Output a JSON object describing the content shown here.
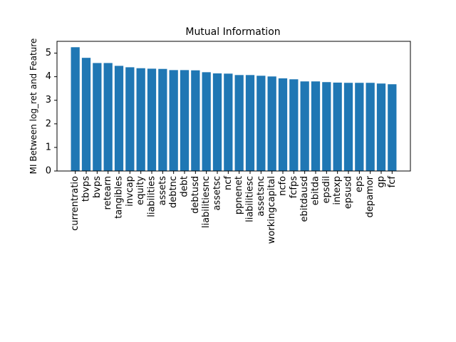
{
  "chart_data": {
    "type": "bar",
    "title": "Mutual Information",
    "xlabel": "",
    "ylabel": "MI Between log_ret and Feature",
    "ylim": [
      0,
      5.5
    ],
    "yticks": [
      "0",
      "1",
      "2",
      "3",
      "4",
      "5"
    ],
    "grid": false,
    "bar_color": "#1f77b4",
    "categories": [
      "currentratio",
      "tbvps",
      "bvps",
      "retearn",
      "tangibles",
      "invcap",
      "equity",
      "liabilities",
      "assets",
      "debtnc",
      "debt",
      "debtusd",
      "liabilitiesnc",
      "assetsc",
      "ncf",
      "ppnenet",
      "liabilitiesc",
      "assetsnc",
      "workingcapital",
      "ncfo",
      "fcfps",
      "ebitdausd",
      "ebitda",
      "epsdil",
      "intexp",
      "epsusd",
      "eps",
      "depamor",
      "gp",
      "fcf"
    ],
    "values": [
      5.25,
      4.8,
      4.58,
      4.58,
      4.46,
      4.4,
      4.36,
      4.34,
      4.33,
      4.28,
      4.28,
      4.27,
      4.19,
      4.14,
      4.13,
      4.07,
      4.07,
      4.04,
      4.01,
      3.93,
      3.89,
      3.8,
      3.8,
      3.77,
      3.75,
      3.74,
      3.74,
      3.74,
      3.71,
      3.68
    ]
  }
}
